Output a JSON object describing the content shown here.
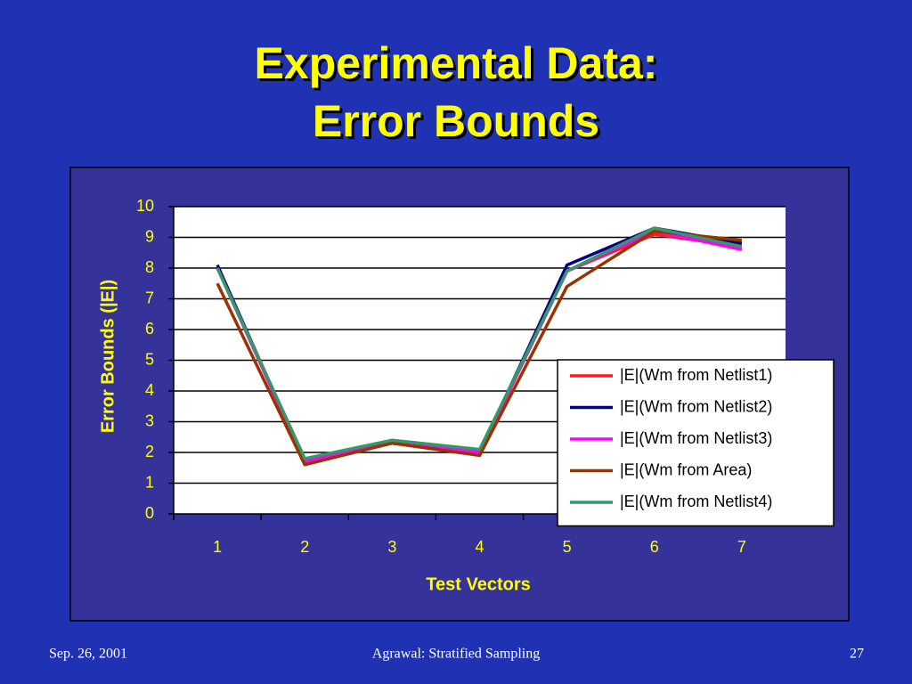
{
  "chart_data": {
    "type": "line",
    "title": [
      "Experimental Data:",
      "Error Bounds"
    ],
    "xlabel": "Test Vectors",
    "ylabel": "Error Bounds (|E|)",
    "categories": [
      "1",
      "2",
      "3",
      "4",
      "5",
      "6",
      "7"
    ],
    "series": [
      {
        "name": "|E|(Wm from Netlist1)",
        "color": "#ff1a1a",
        "values": [
          8.0,
          1.7,
          2.3,
          2.0,
          7.9,
          9.1,
          8.7
        ]
      },
      {
        "name": "|E|(Wm from Netlist2)",
        "color": "#000080",
        "values": [
          8.1,
          1.7,
          2.3,
          2.0,
          8.1,
          9.3,
          8.8
        ]
      },
      {
        "name": "|E|(Wm from Netlist3)",
        "color": "#ff00ff",
        "values": [
          8.0,
          1.7,
          2.3,
          2.0,
          7.9,
          9.2,
          8.6
        ]
      },
      {
        "name": "|E|(Wm from Area)",
        "color": "#993300",
        "values": [
          7.5,
          1.6,
          2.3,
          1.9,
          7.4,
          9.2,
          8.9
        ]
      },
      {
        "name": "|E|(Wm from Netlist4)",
        "color": "#339966",
        "values": [
          8.0,
          1.8,
          2.4,
          2.1,
          7.9,
          9.3,
          8.7
        ]
      }
    ],
    "ylim": [
      0,
      10
    ],
    "yticks": [
      0,
      1,
      2,
      3,
      4,
      5,
      6,
      7,
      8,
      9,
      10
    ],
    "grid": true,
    "legend": "lower right"
  },
  "footer": {
    "date": "Sep. 26, 2001",
    "center": "Agrawal: Stratified Sampling",
    "page": "27"
  }
}
